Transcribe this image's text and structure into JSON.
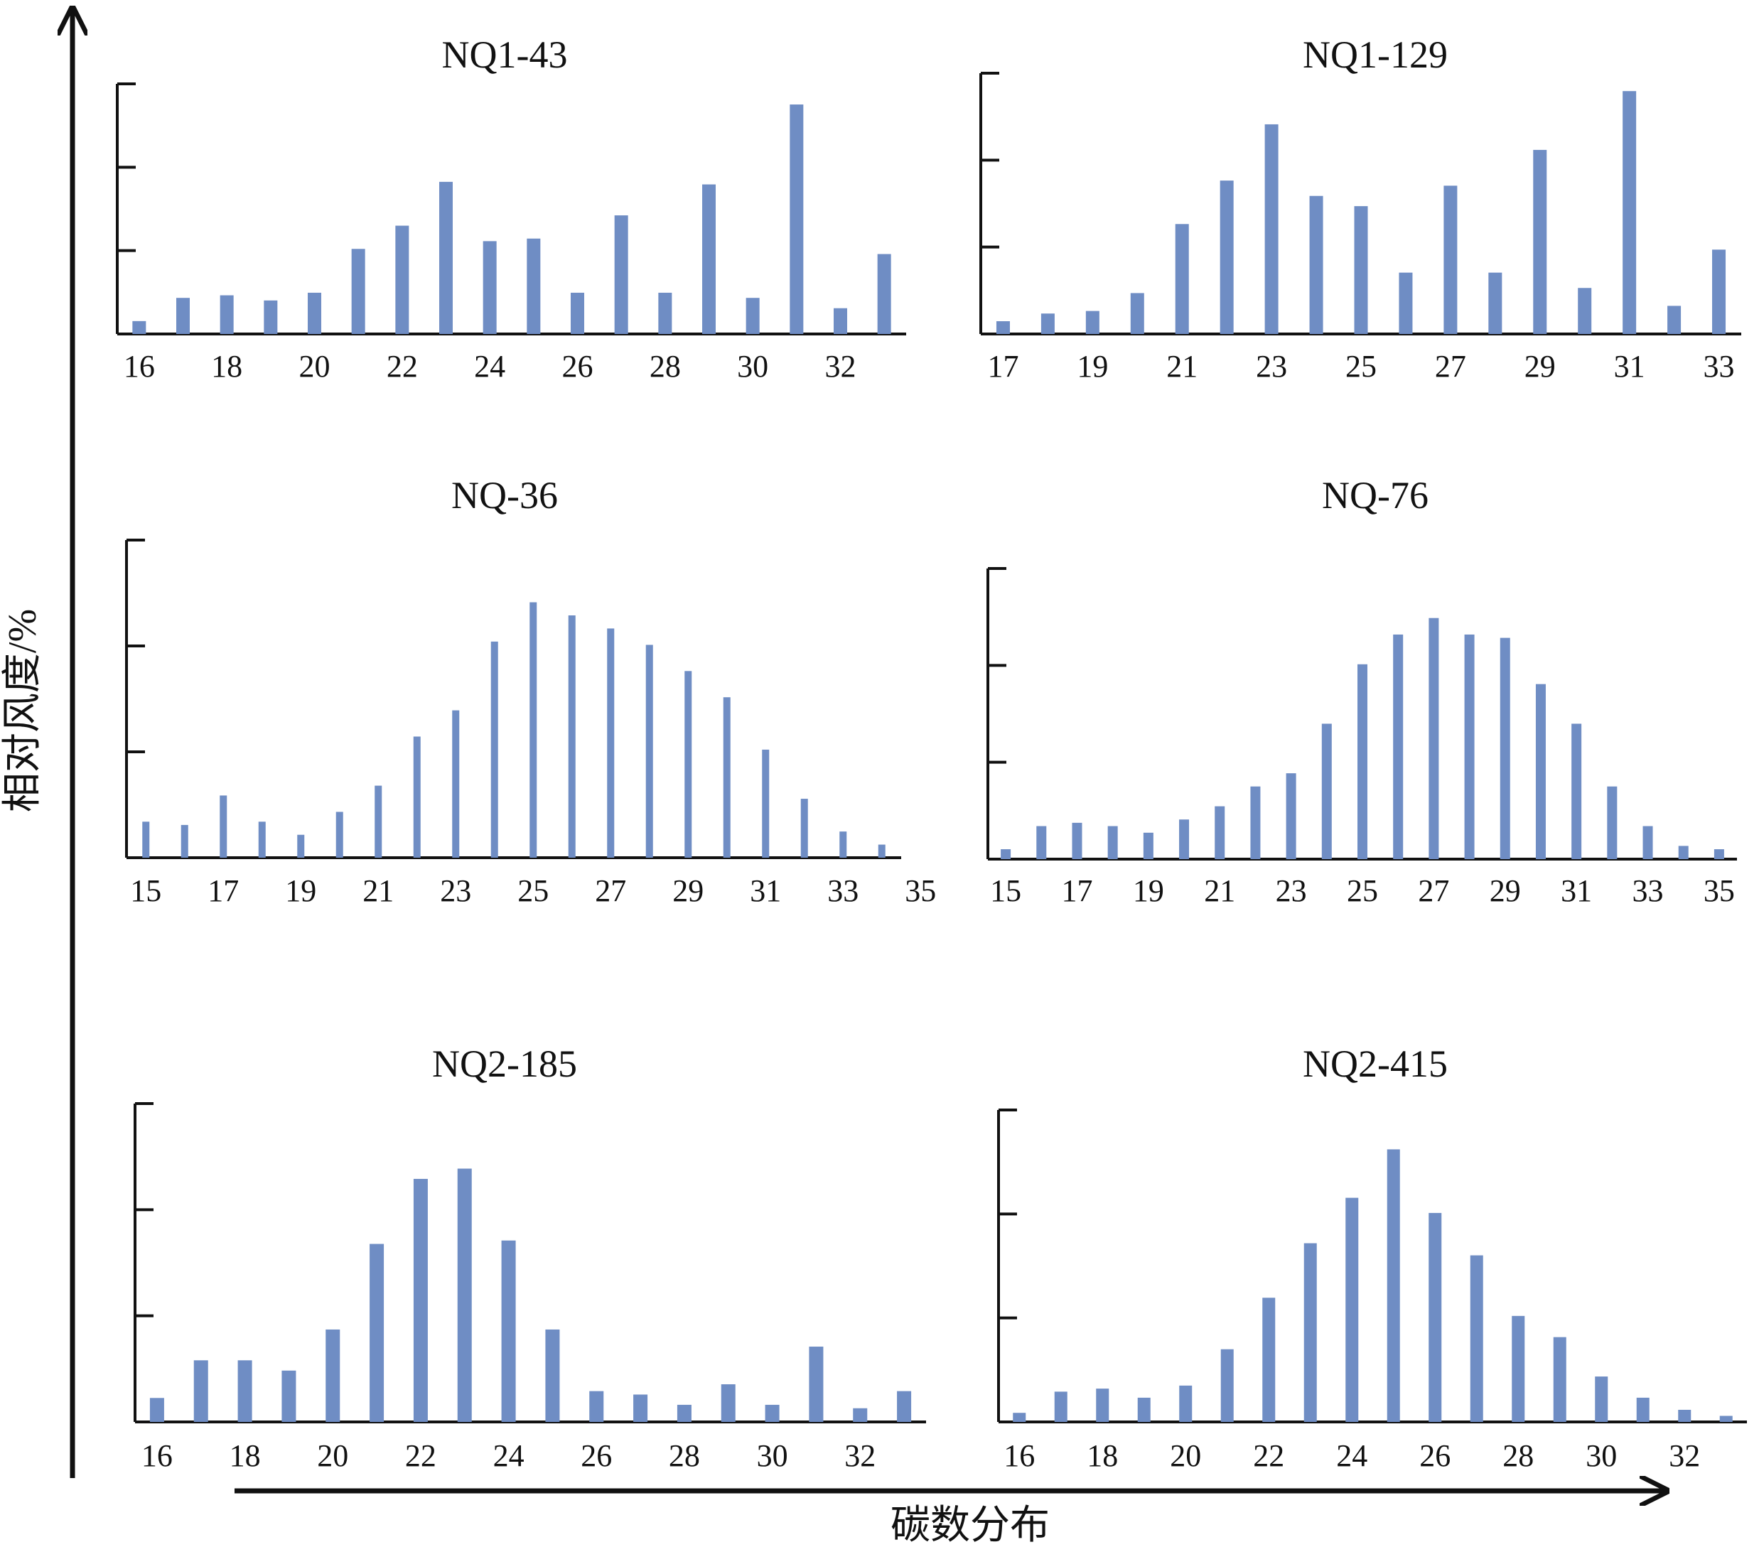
{
  "figure": {
    "y_axis_title": "相对风度/%",
    "x_axis_title": "碳数分布"
  },
  "chart_data": [
    {
      "type": "bar",
      "title": "NQ1-43",
      "categories": [
        16,
        17,
        18,
        19,
        20,
        21,
        22,
        23,
        24,
        25,
        26,
        27,
        28,
        29,
        30,
        31,
        32,
        33
      ],
      "tick_labels": [
        "16",
        "18",
        "20",
        "22",
        "24",
        "26",
        "28",
        "30",
        "32"
      ],
      "values": [
        0.5,
        1.4,
        1.5,
        1.3,
        1.6,
        3.3,
        4.2,
        5.9,
        3.6,
        3.7,
        1.6,
        4.6,
        1.6,
        5.8,
        1.4,
        8.9,
        1.0,
        3.1
      ],
      "ylim": [
        0,
        9.7
      ],
      "ytick_count": 3,
      "color": "#6f8dc4"
    },
    {
      "type": "bar",
      "title": "NQ1-129",
      "categories": [
        17,
        18,
        19,
        20,
        21,
        22,
        23,
        24,
        25,
        26,
        27,
        28,
        29,
        30,
        31,
        32,
        33
      ],
      "tick_labels": [
        "17",
        "19",
        "21",
        "23",
        "25",
        "27",
        "29",
        "31",
        "33"
      ],
      "values": [
        0.5,
        0.8,
        0.9,
        1.6,
        4.3,
        6.0,
        8.2,
        5.4,
        5.0,
        2.4,
        5.8,
        2.4,
        7.2,
        1.8,
        9.5,
        1.1,
        3.3
      ],
      "ylim": [
        0,
        10.2
      ],
      "ytick_count": 3,
      "color": "#6f8dc4"
    },
    {
      "type": "bar",
      "title": "NQ-36",
      "categories": [
        15,
        16,
        17,
        18,
        19,
        20,
        21,
        22,
        23,
        24,
        25,
        26,
        27,
        28,
        29,
        30,
        31,
        32,
        33,
        34
      ],
      "tick_labels": [
        "15",
        "17",
        "19",
        "21",
        "23",
        "25",
        "27",
        "29",
        "31",
        "33",
        "35"
      ],
      "values": [
        1.1,
        1.0,
        1.9,
        1.1,
        0.7,
        1.4,
        2.2,
        3.7,
        4.5,
        6.6,
        7.8,
        7.4,
        7.0,
        6.5,
        5.7,
        4.9,
        3.3,
        1.8,
        0.8,
        0.4
      ],
      "ylim": [
        0,
        9.7
      ],
      "ytick_count": 3,
      "color": "#6f8dc4"
    },
    {
      "type": "bar",
      "title": "NQ-76",
      "categories": [
        15,
        16,
        17,
        18,
        19,
        20,
        21,
        22,
        23,
        24,
        25,
        26,
        27,
        28,
        29,
        30,
        31,
        32,
        33,
        34,
        35
      ],
      "tick_labels": [
        "15",
        "17",
        "19",
        "21",
        "23",
        "25",
        "27",
        "29",
        "31",
        "33",
        "35"
      ],
      "values": [
        0.3,
        1.0,
        1.1,
        1.0,
        0.8,
        1.2,
        1.6,
        2.2,
        2.6,
        4.1,
        5.9,
        6.8,
        7.3,
        6.8,
        6.7,
        5.3,
        4.1,
        2.2,
        1.0,
        0.4,
        0.3
      ],
      "ylim": [
        0,
        8.8
      ],
      "ytick_count": 3,
      "color": "#6f8dc4"
    },
    {
      "type": "bar",
      "title": "NQ2-185",
      "categories": [
        16,
        17,
        18,
        19,
        20,
        21,
        22,
        23,
        24,
        25,
        26,
        27,
        28,
        29,
        30,
        31,
        32,
        33
      ],
      "tick_labels": [
        "16",
        "18",
        "20",
        "22",
        "24",
        "26",
        "28",
        "30",
        "32"
      ],
      "values": [
        0.7,
        1.8,
        1.8,
        1.5,
        2.7,
        5.2,
        7.1,
        7.4,
        5.3,
        2.7,
        0.9,
        0.8,
        0.5,
        1.1,
        0.5,
        2.2,
        0.4,
        0.9
      ],
      "ylim": [
        0,
        9.3
      ],
      "ytick_count": 3,
      "color": "#6f8dc4"
    },
    {
      "type": "bar",
      "title": "NQ2-415",
      "categories": [
        16,
        17,
        18,
        19,
        20,
        21,
        22,
        23,
        24,
        25,
        26,
        27,
        28,
        29,
        30,
        31,
        32,
        33
      ],
      "tick_labels": [
        "16",
        "18",
        "20",
        "22",
        "24",
        "26",
        "28",
        "30",
        "32"
      ],
      "values": [
        0.3,
        1.0,
        1.1,
        0.8,
        1.2,
        2.4,
        4.1,
        5.9,
        7.4,
        9.0,
        6.9,
        5.5,
        3.5,
        2.8,
        1.5,
        0.8,
        0.4,
        0.2
      ],
      "ylim": [
        0,
        10.3
      ],
      "ytick_count": 3,
      "color": "#6f8dc4"
    }
  ]
}
